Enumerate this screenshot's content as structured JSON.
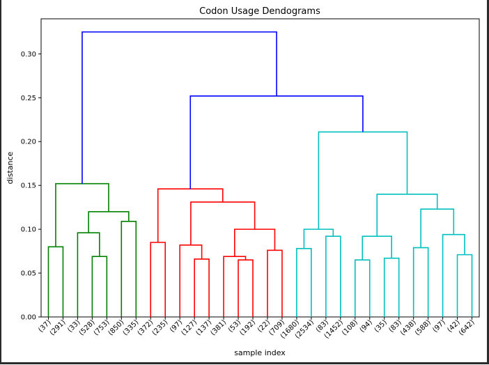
{
  "chart_data": {
    "type": "dendrogram",
    "title": "Codon Usage Dendograms",
    "xlabel": "sample index",
    "ylabel": "distance",
    "ylim": [
      0,
      0.34
    ],
    "y_ticks": [
      "0.00",
      "0.05",
      "0.10",
      "0.15",
      "0.20",
      "0.25",
      "0.30"
    ],
    "y_tick_values": [
      0,
      0.05,
      0.1,
      0.15,
      0.2,
      0.25,
      0.3
    ],
    "leaves": [
      "(37)",
      "(291)",
      "(33)",
      "(528)",
      "(753)",
      "(850)",
      "(335)",
      "(372)",
      "(235)",
      "(97)",
      "(127)",
      "(137)",
      "(381)",
      "(53)",
      "(192)",
      "(22)",
      "(709)",
      "(1680)",
      "(2534)",
      "(83)",
      "(1452)",
      "(108)",
      "(94)",
      "(35)",
      "(83)",
      "(438)",
      "(588)",
      "(97)",
      "(42)",
      "(642)"
    ],
    "colors": {
      "link_above_threshold": "#0000ff",
      "cluster_green": "#008000",
      "cluster_red": "#ff0000",
      "cluster_cyan": "#00bfbf"
    },
    "merges": [
      {
        "left": 0,
        "right": 1,
        "height": 0.08,
        "color": "#008000"
      },
      {
        "left": 3,
        "right": 4,
        "height": 0.069,
        "color": "#008000"
      },
      {
        "left": 2,
        "right": "n2",
        "height": 0.096,
        "color": "#008000"
      },
      {
        "left": 5,
        "right": 6,
        "height": 0.109,
        "color": "#008000"
      },
      {
        "left": "n3",
        "right": "n4",
        "height": 0.12,
        "color": "#008000"
      },
      {
        "left": "n1",
        "right": "n5",
        "height": 0.152,
        "color": "#008000"
      },
      {
        "left": 7,
        "right": 8,
        "height": 0.085,
        "color": "#ff0000"
      },
      {
        "left": 10,
        "right": 11,
        "height": 0.066,
        "color": "#ff0000"
      },
      {
        "left": 9,
        "right": "n8",
        "height": 0.082,
        "color": "#ff0000"
      },
      {
        "left": 13,
        "right": 14,
        "height": 0.065,
        "color": "#ff0000"
      },
      {
        "left": 12,
        "right": "n10",
        "height": 0.069,
        "color": "#ff0000"
      },
      {
        "left": 15,
        "right": 16,
        "height": 0.076,
        "color": "#ff0000"
      },
      {
        "left": "n11",
        "right": "n12",
        "height": 0.1,
        "color": "#ff0000"
      },
      {
        "left": "n9",
        "right": "n13",
        "height": 0.131,
        "color": "#ff0000"
      },
      {
        "left": "n7",
        "right": "n14",
        "height": 0.146,
        "color": "#ff0000"
      },
      {
        "left": 17,
        "right": 18,
        "height": 0.078,
        "color": "#00bfbf"
      },
      {
        "left": 19,
        "right": 20,
        "height": 0.092,
        "color": "#00bfbf"
      },
      {
        "left": "n16",
        "right": "n17",
        "height": 0.1,
        "color": "#00bfbf"
      },
      {
        "left": 21,
        "right": 22,
        "height": 0.065,
        "color": "#00bfbf"
      },
      {
        "left": 23,
        "right": 24,
        "height": 0.067,
        "color": "#00bfbf"
      },
      {
        "left": "n19",
        "right": "n20",
        "height": 0.092,
        "color": "#00bfbf"
      },
      {
        "left": 25,
        "right": 26,
        "height": 0.079,
        "color": "#00bfbf"
      },
      {
        "left": 28,
        "right": 29,
        "height": 0.071,
        "color": "#00bfbf"
      },
      {
        "left": 27,
        "right": "n23",
        "height": 0.094,
        "color": "#00bfbf"
      },
      {
        "left": "n22",
        "right": "n24",
        "height": 0.123,
        "color": "#00bfbf"
      },
      {
        "left": "n21",
        "right": "n25",
        "height": 0.14,
        "color": "#00bfbf"
      },
      {
        "left": "n18",
        "right": "n26",
        "height": 0.211,
        "color": "#00bfbf"
      },
      {
        "left": "n15",
        "right": "n27",
        "height": 0.252,
        "color": "#0000ff"
      },
      {
        "left": "n6",
        "right": "n28",
        "height": 0.325,
        "color": "#0000ff"
      }
    ]
  }
}
